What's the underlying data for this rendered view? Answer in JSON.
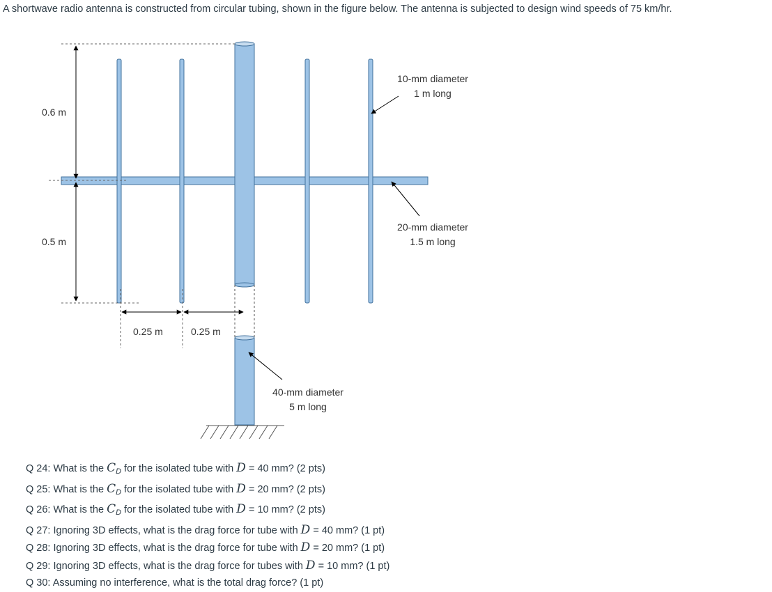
{
  "intro": "A shortwave radio antenna is constructed from circular tubing, shown in the figure below. The antenna is subjected to design wind speeds of 75 km/hr.",
  "figure": {
    "dim_top": "0.6 m",
    "dim_bottom": "0.5 m",
    "spacing_1": "0.25 m",
    "spacing_2": "0.25 m",
    "label_10mm_line1": "10-mm diameter",
    "label_10mm_line2": "1 m long",
    "label_20mm_line1": "20-mm diameter",
    "label_20mm_line2": "1.5 m long",
    "label_40mm_line1": "40-mm diameter",
    "label_40mm_line2": "5 m long",
    "colors": {
      "tube_fill": "#9dc3e6",
      "tube_stroke": "#41719c",
      "text": "#333333"
    }
  },
  "questions": [
    {
      "pre": "Q 24: What is the ",
      "sym": "C",
      "sub": "D",
      "mid": " for the isolated tube with ",
      "var": "D",
      "post": " = 40 mm? (2 pts)"
    },
    {
      "pre": "Q 25: What is the ",
      "sym": "C",
      "sub": "D",
      "mid": " for the isolated tube with ",
      "var": "D",
      "post": " = 20 mm? (2 pts)"
    },
    {
      "pre": "Q 26: What is the ",
      "sym": "C",
      "sub": "D",
      "mid": " for the isolated tube with ",
      "var": "D",
      "post": " = 10 mm? (2 pts)"
    },
    {
      "pre": "Q 27: Ignoring 3D effects, what is the drag force for tube with ",
      "var": "D",
      "post": " = 40 mm? (1 pt)"
    },
    {
      "pre": "Q 28: Ignoring 3D effects, what is the drag force for tube with ",
      "var": "D",
      "post": " = 20 mm? (1 pt)"
    },
    {
      "pre": "Q 29: Ignoring 3D effects, what is the drag force for tubes with ",
      "var": "D",
      "post": " = 10 mm? (1 pt)"
    },
    {
      "pre": "Q 30: Assuming no interference, what is the total drag force? (1 pt)"
    }
  ]
}
